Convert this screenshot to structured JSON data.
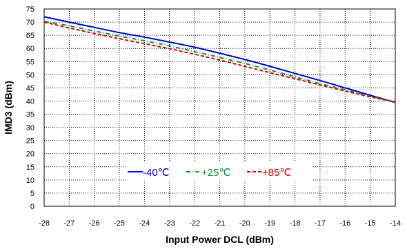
{
  "chart_data": {
    "type": "line",
    "title": "",
    "xlabel": "Input Power DCL (dBm)",
    "ylabel": "IMD3 (dBm)",
    "xlim": [
      -28,
      -14
    ],
    "ylim": [
      0,
      75
    ],
    "xticks": [
      -28,
      -27,
      -26,
      -25,
      -24,
      -23,
      -22,
      -21,
      -20,
      -19,
      -18,
      -17,
      -16,
      -15,
      -14
    ],
    "yticks": [
      0,
      5,
      10,
      15,
      20,
      25,
      30,
      35,
      40,
      45,
      50,
      55,
      60,
      65,
      70,
      75
    ],
    "grid": true,
    "legend_position": "lower-center",
    "series": [
      {
        "name": "-40℃",
        "color": "#0000cc",
        "dash": "solid",
        "x": [
          -28,
          -27,
          -26,
          -25,
          -24,
          -23,
          -22,
          -21,
          -20,
          -19,
          -18,
          -17,
          -16,
          -15,
          -14
        ],
        "y": [
          72.0,
          70.0,
          68.0,
          66.0,
          64.3,
          62.4,
          60.5,
          58.2,
          55.8,
          53.2,
          50.5,
          47.8,
          45.0,
          42.2,
          39.5
        ]
      },
      {
        "name": "+25℃",
        "color": "#009933",
        "dash": "dashdot",
        "x": [
          -28,
          -27,
          -26,
          -25,
          -24,
          -23,
          -22,
          -21,
          -20,
          -19,
          -18,
          -17,
          -16,
          -15,
          -14
        ],
        "y": [
          70.3,
          68.6,
          66.6,
          64.7,
          62.9,
          61.0,
          58.8,
          56.6,
          54.3,
          51.8,
          49.2,
          46.6,
          44.3,
          41.8,
          39.6
        ]
      },
      {
        "name": "+85℃",
        "color": "#dd0000",
        "dash": "dashed",
        "x": [
          -28,
          -27,
          -26,
          -25,
          -24,
          -23,
          -22,
          -21,
          -20,
          -19,
          -18,
          -17,
          -16,
          -15,
          -14
        ],
        "y": [
          70.0,
          67.8,
          65.7,
          63.7,
          61.8,
          59.9,
          57.8,
          55.6,
          53.2,
          50.8,
          48.5,
          46.1,
          43.8,
          41.6,
          39.6
        ]
      }
    ]
  }
}
